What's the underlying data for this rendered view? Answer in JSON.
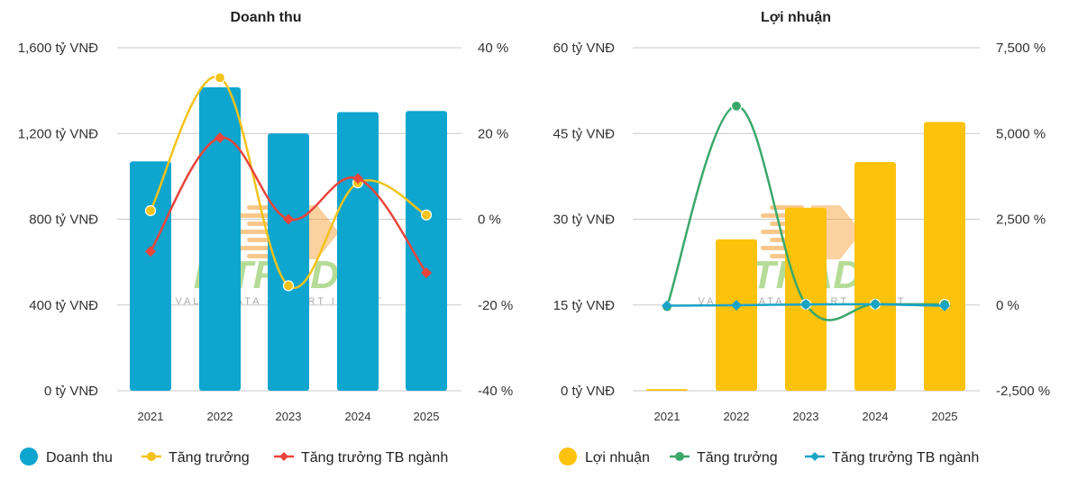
{
  "colors": {
    "revenue_bar": "#0ea5cf",
    "revenue_growth": "#f3c31a",
    "revenue_industry": "#e8453c",
    "profit_bar": "#fcc20c",
    "profit_growth": "#3aa86b",
    "profit_industry": "#1ba3c6",
    "grid": "#c8c8c8",
    "watermark_green": "#7ac043",
    "watermark_orange": "#f39a2b"
  },
  "watermark": {
    "brand": "FITRADE",
    "tagline": "VALUE DATA - SMART INVEST"
  },
  "chart_data": [
    {
      "type": "bar",
      "title": "Doanh thu",
      "categories": [
        "2021",
        "2022",
        "2023",
        "2024",
        "2025"
      ],
      "left_axis": {
        "ticks": [
          "1,600 tỷ VNĐ",
          "1,200 tỷ VNĐ",
          "800 tỷ VNĐ",
          "400 tỷ VNĐ",
          "0 tỷ VNĐ"
        ],
        "ylim": [
          0,
          1600
        ]
      },
      "right_axis": {
        "ticks": [
          "40 %",
          "20 %",
          "0 %",
          "-20 %",
          "-40 %"
        ],
        "ylim": [
          -40,
          40
        ]
      },
      "series": [
        {
          "name": "Doanh thu",
          "kind": "bar",
          "axis": "left",
          "values": [
            1070,
            1415,
            1200,
            1300,
            1305
          ]
        },
        {
          "name": "Tăng trưởng",
          "kind": "line",
          "axis": "right",
          "values": [
            2,
            33,
            -15.5,
            8.5,
            1
          ]
        },
        {
          "name": "Tăng trưởng TB ngành",
          "kind": "line",
          "axis": "right",
          "values": [
            -7.5,
            19,
            0,
            9.5,
            -12.5
          ]
        }
      ],
      "legend": [
        "Doanh thu",
        "Tăng trưởng",
        "Tăng trưởng TB ngành"
      ],
      "legend_position": "bottom",
      "grid": true
    },
    {
      "type": "bar",
      "title": "Lợi nhuận",
      "categories": [
        "2021",
        "2022",
        "2023",
        "2024",
        "2025"
      ],
      "left_axis": {
        "ticks": [
          "60 tỷ VNĐ",
          "45 tỷ VNĐ",
          "30 tỷ VNĐ",
          "15 tỷ VNĐ",
          "0 tỷ VNĐ"
        ],
        "ylim": [
          0,
          60
        ]
      },
      "right_axis": {
        "ticks": [
          "7,500 %",
          "5,000 %",
          "2,500 %",
          "0 %",
          "-2,500 %"
        ],
        "ylim": [
          -2500,
          7500
        ]
      },
      "series": [
        {
          "name": "Lợi nhuận",
          "kind": "bar",
          "axis": "left",
          "values": [
            0.3,
            26.5,
            32,
            40,
            47
          ]
        },
        {
          "name": "Tăng trưởng",
          "kind": "line",
          "axis": "right",
          "values": [
            -50,
            5800,
            20,
            25,
            18
          ]
        },
        {
          "name": "Tăng trưởng TB ngành",
          "kind": "line",
          "axis": "right",
          "values": [
            -20,
            -5,
            15,
            20,
            -25
          ]
        }
      ],
      "legend": [
        "Lợi nhuận",
        "Tăng trưởng",
        "Tăng trưởng TB ngành"
      ],
      "legend_position": "bottom",
      "grid": true
    }
  ]
}
